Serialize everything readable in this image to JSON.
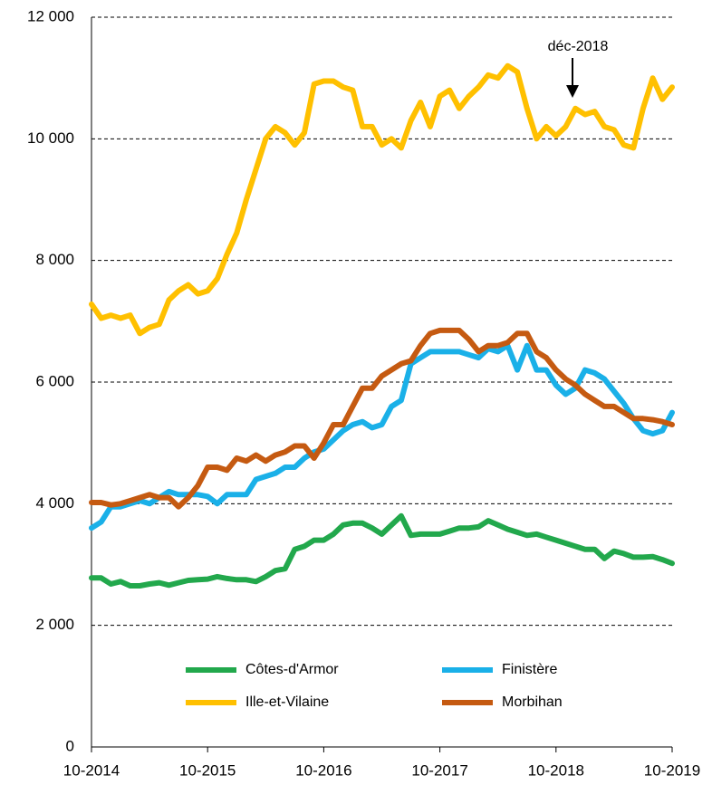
{
  "chart_data": {
    "type": "line",
    "categories": [
      "10-2014",
      null,
      null,
      null,
      null,
      null,
      null,
      null,
      null,
      null,
      null,
      null,
      "10-2015",
      null,
      null,
      null,
      null,
      null,
      null,
      null,
      null,
      null,
      null,
      null,
      "10-2016",
      null,
      null,
      null,
      null,
      null,
      null,
      null,
      null,
      null,
      null,
      null,
      "10-2017",
      null,
      null,
      null,
      null,
      null,
      null,
      null,
      null,
      null,
      null,
      null,
      "10-2018",
      null,
      null,
      null,
      null,
      null,
      null,
      null,
      null,
      null,
      null,
      null,
      "10-2019"
    ],
    "series": [
      {
        "name": "Côtes-d'Armor",
        "color": "#22a84c",
        "values": [
          2780,
          2780,
          2680,
          2720,
          2650,
          2650,
          2680,
          2700,
          2660,
          2700,
          2740,
          2750,
          2760,
          2800,
          2770,
          2750,
          2750,
          2720,
          2800,
          2900,
          2930,
          3250,
          3300,
          3400,
          3400,
          3500,
          3650,
          3680,
          3680,
          3600,
          3500,
          3650,
          3800,
          3480,
          3500,
          3500,
          3500,
          3550,
          3600,
          3600,
          3620,
          3720,
          3650,
          3580,
          3530,
          3480,
          3500,
          3450,
          3400,
          3350,
          3300,
          3250,
          3250,
          3100,
          3220,
          3180,
          3120,
          3120,
          3130,
          3080,
          3020
        ]
      },
      {
        "name": "Finistère",
        "color": "#1ab0e8",
        "values": [
          3600,
          3700,
          3950,
          3950,
          4000,
          4050,
          4000,
          4100,
          4200,
          4150,
          4150,
          4150,
          4120,
          4000,
          4150,
          4150,
          4150,
          4400,
          4450,
          4500,
          4600,
          4600,
          4750,
          4850,
          4900,
          5050,
          5200,
          5300,
          5350,
          5250,
          5300,
          5600,
          5700,
          6300,
          6400,
          6500,
          6500,
          6500,
          6500,
          6450,
          6400,
          6550,
          6500,
          6600,
          6200,
          6600,
          6200,
          6200,
          5950,
          5800,
          5900,
          6200,
          6150,
          6050,
          5850,
          5650,
          5400,
          5200,
          5150,
          5200,
          5500
        ]
      },
      {
        "name": "Ille-et-Vilaine",
        "color": "#ffc000",
        "values": [
          7280,
          7050,
          7100,
          7050,
          7100,
          6800,
          6900,
          6950,
          7350,
          7500,
          7600,
          7450,
          7500,
          7700,
          8100,
          8450,
          9000,
          9500,
          10000,
          10200,
          10100,
          9900,
          10100,
          10900,
          10950,
          10950,
          10850,
          10800,
          10200,
          10200,
          9900,
          10000,
          9850,
          10300,
          10600,
          10200,
          10700,
          10800,
          10500,
          10700,
          10850,
          11050,
          11000,
          11200,
          11100,
          10500,
          10000,
          10200,
          10050,
          10200,
          10500,
          10400,
          10450,
          10200,
          10150,
          9900,
          9850,
          10500,
          11000,
          10650,
          10850
        ]
      },
      {
        "name": "Morbihan",
        "color": "#c55a11",
        "values": [
          4020,
          4020,
          3980,
          4000,
          4050,
          4100,
          4150,
          4100,
          4100,
          3950,
          4100,
          4300,
          4600,
          4600,
          4550,
          4750,
          4700,
          4800,
          4700,
          4800,
          4850,
          4950,
          4950,
          4750,
          5000,
          5300,
          5300,
          5600,
          5900,
          5900,
          6100,
          6200,
          6300,
          6350,
          6600,
          6800,
          6850,
          6850,
          6850,
          6700,
          6500,
          6600,
          6600,
          6650,
          6800,
          6800,
          6500,
          6400,
          6200,
          6050,
          5950,
          5800,
          5700,
          5600,
          5600,
          5500,
          5400,
          5400,
          5380,
          5350,
          5300
        ]
      }
    ],
    "ylim": [
      0,
      12000
    ],
    "yticks": [
      0,
      {
        "value": 2000,
        "label": "2 000"
      },
      {
        "value": 4000,
        "label": "4 000"
      },
      {
        "value": 6000,
        "label": "6 000"
      },
      {
        "value": 8000,
        "label": "8 000"
      },
      {
        "value": 10000,
        "label": "10 000"
      },
      {
        "value": 12000,
        "label": "12 000"
      }
    ],
    "grid": true,
    "legend": "bottom",
    "annotations": [
      {
        "text": "déc-2018"
      }
    ]
  }
}
